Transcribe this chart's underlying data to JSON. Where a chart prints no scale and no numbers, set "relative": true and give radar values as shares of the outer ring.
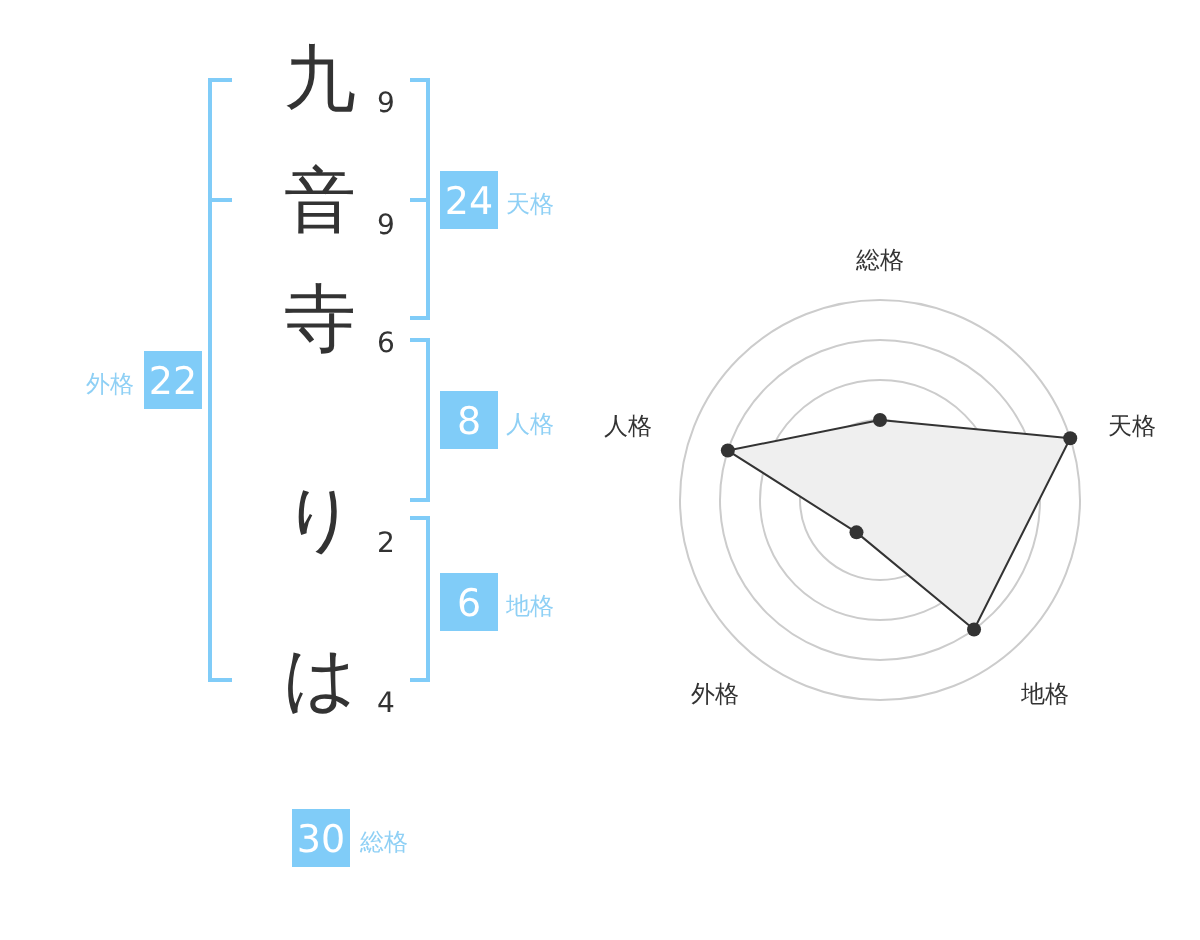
{
  "chart_data": [
    {
      "type": "other",
      "categories": [
        "九",
        "音",
        "寺",
        null,
        "り",
        "は"
      ],
      "values": [
        9,
        9,
        6,
        null,
        2,
        4
      ],
      "data_labels": true,
      "annotations": [
        "24",
        "天格",
        "8",
        "人格",
        "6",
        "地格",
        "22",
        "外格",
        "30",
        "総格"
      ]
    },
    {
      "type": "radar",
      "categories": [
        "総格",
        "天格",
        "地格",
        "外格",
        "人格"
      ],
      "relative": true,
      "grid": true,
      "marker": "circle",
      "series": [
        {
          "color": "#333333",
          "values": [
            0.4,
            1,
            0.8,
            0.2,
            0.8
          ]
        }
      ]
    }
  ]
}
